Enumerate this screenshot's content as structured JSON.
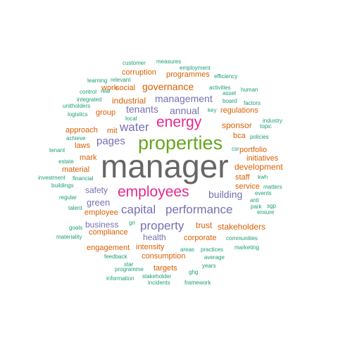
{
  "palette": {
    "teal": "#1b9e77",
    "orange": "#d95f02",
    "purple": "#7570b3",
    "magenta": "#e7298a",
    "green": "#66a61e",
    "gray": "#666666"
  },
  "words": [
    {
      "text": "manager",
      "color": "gray"
    },
    {
      "text": "properties",
      "color": "green"
    },
    {
      "text": "employees",
      "color": "magenta"
    },
    {
      "text": "energy",
      "color": "magenta"
    },
    {
      "text": "capital",
      "color": "purple"
    },
    {
      "text": "performance",
      "color": "purple"
    },
    {
      "text": "property",
      "color": "purple"
    },
    {
      "text": "water",
      "color": "purple"
    },
    {
      "text": "pages",
      "color": "purple"
    },
    {
      "text": "tenants",
      "color": "purple"
    },
    {
      "text": "annual",
      "color": "purple"
    },
    {
      "text": "management",
      "color": "purple"
    },
    {
      "text": "governance",
      "color": "orange"
    },
    {
      "text": "building",
      "color": "purple"
    },
    {
      "text": "green",
      "color": "purple"
    },
    {
      "text": "safety",
      "color": "purple"
    },
    {
      "text": "business",
      "color": "purple"
    },
    {
      "text": "health",
      "color": "purple"
    },
    {
      "text": "trust",
      "color": "orange"
    },
    {
      "text": "stakeholders",
      "color": "orange"
    },
    {
      "text": "sponsor",
      "color": "orange"
    },
    {
      "text": "development",
      "color": "orange"
    },
    {
      "text": "industrial",
      "color": "orange"
    },
    {
      "text": "compliance",
      "color": "orange"
    },
    {
      "text": "consumption",
      "color": "orange"
    },
    {
      "text": "corporate",
      "color": "orange"
    },
    {
      "text": "group",
      "color": "orange"
    },
    {
      "text": "regulations",
      "color": "orange"
    },
    {
      "text": "intensity",
      "color": "orange"
    },
    {
      "text": "staff",
      "color": "orange"
    },
    {
      "text": "social",
      "color": "orange"
    },
    {
      "text": "programmes",
      "color": "orange"
    },
    {
      "text": "corruption",
      "color": "orange"
    },
    {
      "text": "approach",
      "color": "orange"
    },
    {
      "text": "mit",
      "color": "orange"
    },
    {
      "text": "bca",
      "color": "orange"
    },
    {
      "text": "portfolio",
      "color": "orange"
    },
    {
      "text": "initiatives",
      "color": "orange"
    },
    {
      "text": "employee",
      "color": "orange"
    },
    {
      "text": "engagement",
      "color": "orange"
    },
    {
      "text": "work",
      "color": "orange"
    },
    {
      "text": "laws",
      "color": "orange"
    },
    {
      "text": "mark",
      "color": "orange"
    },
    {
      "text": "material",
      "color": "orange"
    },
    {
      "text": "service",
      "color": "orange"
    },
    {
      "text": "targets",
      "color": "orange"
    },
    {
      "text": "customer",
      "color": "teal"
    },
    {
      "text": "measures",
      "color": "teal"
    },
    {
      "text": "employment",
      "color": "teal"
    },
    {
      "text": "relevant",
      "color": "teal"
    },
    {
      "text": "efficiency",
      "color": "teal"
    },
    {
      "text": "learning",
      "color": "teal"
    },
    {
      "text": "activities",
      "color": "teal"
    },
    {
      "text": "asset",
      "color": "teal"
    },
    {
      "text": "control",
      "color": "teal"
    },
    {
      "text": "real",
      "color": "teal"
    },
    {
      "text": "human",
      "color": "teal"
    },
    {
      "text": "integrated",
      "color": "teal"
    },
    {
      "text": "board",
      "color": "teal"
    },
    {
      "text": "factors",
      "color": "teal"
    },
    {
      "text": "unitholders",
      "color": "teal"
    },
    {
      "text": "key",
      "color": "teal"
    },
    {
      "text": "local",
      "color": "teal"
    },
    {
      "text": "logistics",
      "color": "teal"
    },
    {
      "text": "industry",
      "color": "teal"
    },
    {
      "text": "topic",
      "color": "teal"
    },
    {
      "text": "achieve",
      "color": "teal"
    },
    {
      "text": "policies",
      "color": "teal"
    },
    {
      "text": "tenant",
      "color": "teal"
    },
    {
      "text": "csr",
      "color": "teal"
    },
    {
      "text": "estate",
      "color": "teal"
    },
    {
      "text": "financial",
      "color": "teal"
    },
    {
      "text": "investment",
      "color": "teal"
    },
    {
      "text": "buildings",
      "color": "teal"
    },
    {
      "text": "kwh",
      "color": "teal"
    },
    {
      "text": "matters",
      "color": "teal"
    },
    {
      "text": "events",
      "color": "teal"
    },
    {
      "text": "regular",
      "color": "teal"
    },
    {
      "text": "anti",
      "color": "teal"
    },
    {
      "text": "park",
      "color": "teal"
    },
    {
      "text": "sgp",
      "color": "teal"
    },
    {
      "text": "talent",
      "color": "teal"
    },
    {
      "text": "ensure",
      "color": "teal"
    },
    {
      "text": "goals",
      "color": "teal"
    },
    {
      "text": "gri",
      "color": "teal"
    },
    {
      "text": "materiality",
      "color": "teal"
    },
    {
      "text": "communities",
      "color": "teal"
    },
    {
      "text": "areas",
      "color": "teal"
    },
    {
      "text": "practices",
      "color": "teal"
    },
    {
      "text": "marketing",
      "color": "teal"
    },
    {
      "text": "feedback",
      "color": "teal"
    },
    {
      "text": "average",
      "color": "teal"
    },
    {
      "text": "star",
      "color": "teal"
    },
    {
      "text": "years",
      "color": "teal"
    },
    {
      "text": "programme",
      "color": "teal"
    },
    {
      "text": "ghg",
      "color": "teal"
    },
    {
      "text": "information",
      "color": "teal"
    },
    {
      "text": "stakeholder",
      "color": "teal"
    },
    {
      "text": "incidents",
      "color": "teal"
    },
    {
      "text": "framework",
      "color": "teal"
    }
  ]
}
